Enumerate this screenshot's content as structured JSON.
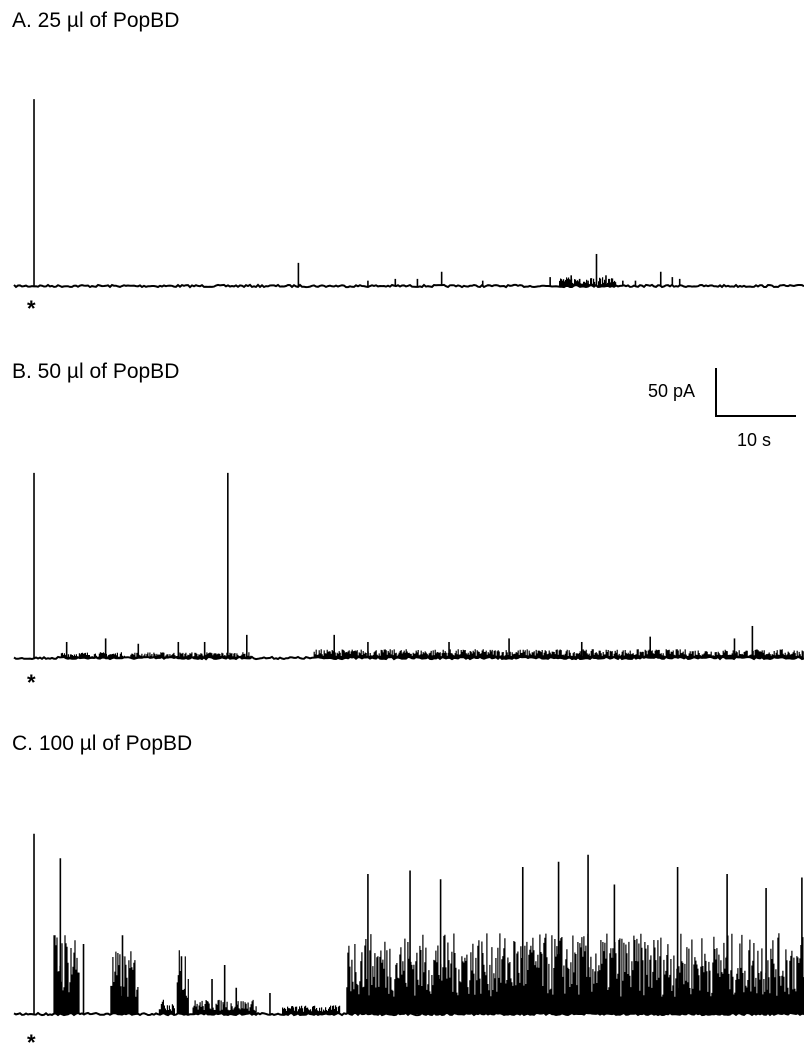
{
  "panels": [
    {
      "id": "A",
      "title": "A. 25 µl of PopBD",
      "marker": "*"
    },
    {
      "id": "B",
      "title": "B. 50 µl of PopBD",
      "marker": "*"
    },
    {
      "id": "C",
      "title": "C. 100 µl of PopBD",
      "marker": "*"
    }
  ],
  "scale_bar": {
    "current_label": "50 pA",
    "time_label": "10 s",
    "current_pA": 50,
    "time_s": 10
  },
  "chart_data": [
    {
      "type": "line",
      "title": "A. 25 µl of PopBD",
      "xlabel": "",
      "ylabel": "",
      "x_unit": "s",
      "y_unit": "pA",
      "xlim": [
        0,
        75
      ],
      "ylim": [
        0,
        110
      ],
      "grid": false,
      "baseline": 0,
      "spikes_t": [
        1.9,
        27.0,
        33.6,
        36.2,
        38.3,
        40.6,
        44.5,
        50.9,
        52.9,
        53.7,
        54.5,
        55.3,
        56.2,
        57.8,
        59.0,
        61.4,
        62.5,
        63.2
      ],
      "spikes_pA": [
        105,
        13,
        3,
        4,
        4,
        8,
        3,
        5,
        6,
        4,
        3,
        18,
        6,
        3,
        3,
        8,
        5,
        4
      ],
      "bursts": [
        {
          "t0": 51.8,
          "t1": 55.2,
          "mean_pA": 3,
          "max_pA": 8
        },
        {
          "t0": 55.5,
          "t1": 57.2,
          "mean_pA": 3,
          "max_pA": 6
        }
      ]
    },
    {
      "type": "line",
      "title": "B. 50 µl of PopBD",
      "xlabel": "",
      "ylabel": "",
      "x_unit": "s",
      "y_unit": "pA",
      "xlim": [
        0,
        75
      ],
      "ylim": [
        0,
        110
      ],
      "grid": false,
      "baseline": 0,
      "spikes_t": [
        1.9,
        20.3,
        5.0,
        8.7,
        11.8,
        15.6,
        18.1,
        22.1,
        30.4,
        33.6,
        41.3,
        47.0,
        53.9,
        60.4,
        68.4,
        70.1
      ],
      "spikes_pA": [
        104,
        104,
        9,
        11,
        8,
        9,
        9,
        13,
        13,
        9,
        9,
        11,
        9,
        12,
        11,
        18
      ],
      "bursts": [
        {
          "t0": 4.5,
          "t1": 10.5,
          "mean_pA": 2,
          "max_pA": 7
        },
        {
          "t0": 11.0,
          "t1": 22.5,
          "mean_pA": 2,
          "max_pA": 8
        },
        {
          "t0": 28.5,
          "t1": 75,
          "mean_pA": 3,
          "max_pA": 10
        }
      ]
    },
    {
      "type": "line",
      "title": "C. 100 µl of PopBD",
      "xlabel": "",
      "ylabel": "",
      "x_unit": "s",
      "y_unit": "pA",
      "xlim": [
        0,
        75
      ],
      "ylim": [
        0,
        110
      ],
      "grid": false,
      "baseline": 0,
      "spikes_t": [
        1.9,
        4.4,
        6.6,
        10.3,
        15.9,
        18.8,
        20.0,
        21.1,
        24.3,
        33.6,
        37.6,
        40.5,
        48.3,
        51.7,
        54.5,
        57.0,
        63.0,
        67.7,
        71.4,
        74.8
      ],
      "spikes_pA": [
        103,
        89,
        40,
        45,
        33,
        20,
        28,
        15,
        12,
        80,
        82,
        77,
        84,
        87,
        91,
        74,
        84,
        80,
        72,
        78
      ],
      "bursts": [
        {
          "t0": 3.8,
          "t1": 6.2,
          "mean_pA": 30,
          "max_pA": 45
        },
        {
          "t0": 9.2,
          "t1": 11.8,
          "mean_pA": 22,
          "max_pA": 40
        },
        {
          "t0": 15.5,
          "t1": 16.6,
          "mean_pA": 25,
          "max_pA": 40
        },
        {
          "t0": 13.8,
          "t1": 15.3,
          "mean_pA": 5,
          "max_pA": 12
        },
        {
          "t0": 17.0,
          "t1": 23.0,
          "mean_pA": 5,
          "max_pA": 15
        },
        {
          "t0": 25.5,
          "t1": 31.0,
          "mean_pA": 3,
          "max_pA": 8
        },
        {
          "t0": 31.6,
          "t1": 75,
          "mean_pA": 28,
          "max_pA": 58
        }
      ]
    }
  ]
}
